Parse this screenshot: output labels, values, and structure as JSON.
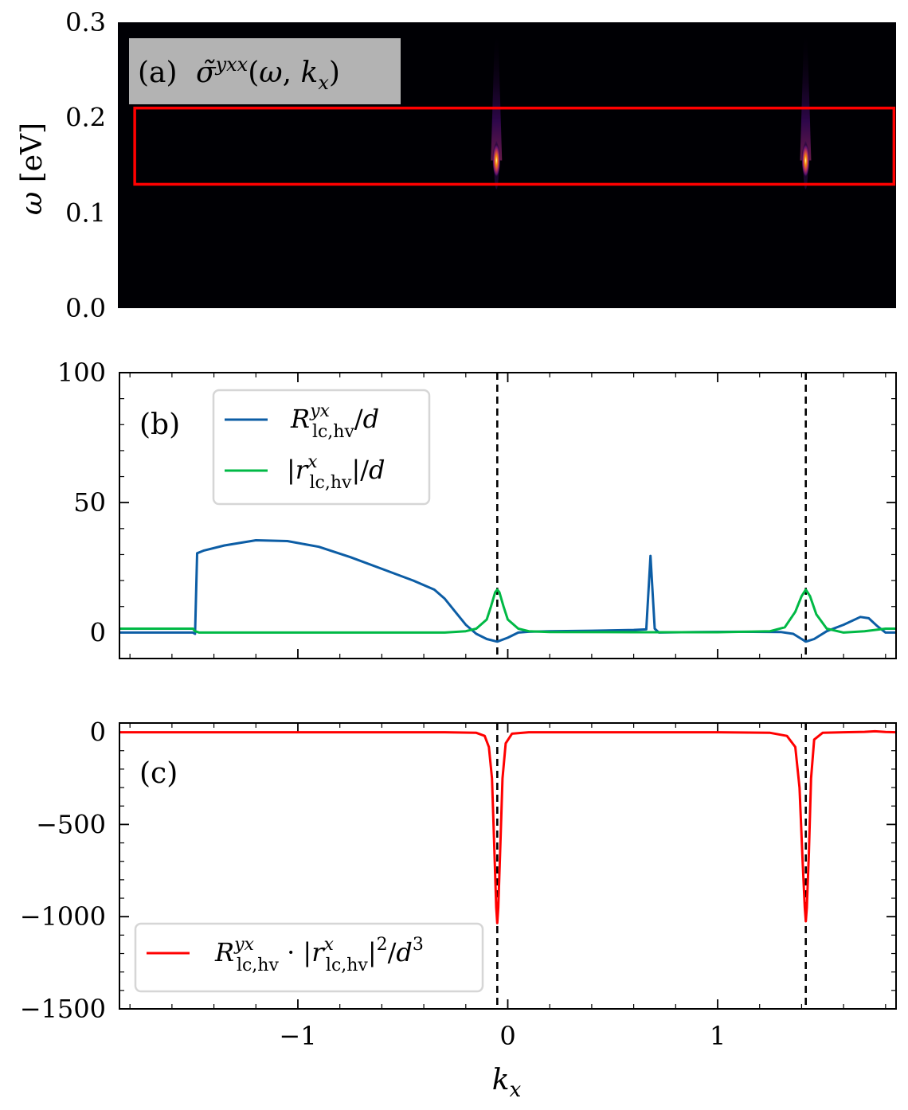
{
  "chart_data": [
    {
      "type": "heatmap",
      "panel_label": "(a)",
      "title": "σ̃^{yxx}(ω, k_x)",
      "title_text": "σ̃yxx(ω, kx)",
      "ylabel": "ω [eV]",
      "xlim": [
        -1.85,
        1.85
      ],
      "ylim": [
        0.0,
        0.3
      ],
      "yticks": [
        0.0,
        0.1,
        0.2,
        0.3
      ],
      "ytick_labels": [
        "0.0",
        "0.1",
        "0.2",
        "0.3"
      ],
      "background_color": "#000004",
      "hotspots": [
        {
          "kx": -0.05,
          "omega": 0.155
        },
        {
          "kx": 1.42,
          "omega": 0.155
        }
      ],
      "highlight_box": {
        "kx": [
          -1.77,
          1.84
        ],
        "omega": [
          0.13,
          0.21
        ],
        "color": "#ff0000"
      }
    },
    {
      "type": "line",
      "panel_label": "(b)",
      "xlim": [
        -1.85,
        1.85
      ],
      "ylim": [
        -10,
        100
      ],
      "yticks": [
        0,
        50,
        100
      ],
      "ytick_labels": [
        "0",
        "50",
        "100"
      ],
      "vlines": [
        -0.05,
        1.42
      ],
      "legend": "top-left",
      "series": [
        {
          "name": "R^{yx}_{lc,hv}/d",
          "name_parts": {
            "base": "R",
            "sup": "yx",
            "sub": "lc,hv",
            "tail": "/d"
          },
          "color": "#0c5da5",
          "x": [
            -1.85,
            -1.5,
            -1.49,
            -1.48,
            -1.45,
            -1.35,
            -1.2,
            -1.05,
            -0.9,
            -0.75,
            -0.6,
            -0.45,
            -0.35,
            -0.3,
            -0.25,
            -0.2,
            -0.15,
            -0.1,
            -0.05,
            0.0,
            0.05,
            0.1,
            0.2,
            0.4,
            0.6,
            0.66,
            0.68,
            0.7,
            0.72,
            0.9,
            1.1,
            1.3,
            1.36,
            1.4,
            1.42,
            1.46,
            1.52,
            1.6,
            1.68,
            1.72,
            1.76,
            1.8,
            1.85
          ],
          "y": [
            0.0,
            0.0,
            -0.5,
            30.5,
            31.5,
            33.5,
            35.5,
            35.2,
            33.0,
            29.0,
            24.5,
            20.0,
            16.5,
            13.0,
            8.0,
            3.0,
            -0.5,
            -2.5,
            -3.5,
            -2.0,
            0.0,
            0.3,
            0.5,
            0.7,
            1.0,
            1.2,
            29.5,
            1.5,
            0.0,
            0.2,
            0.3,
            0.2,
            -0.5,
            -2.5,
            -3.5,
            -2.5,
            0.5,
            3.0,
            6.0,
            5.5,
            2.5,
            0.0,
            0.0
          ]
        },
        {
          "name": "|r^{x}_{lc,hv}|/d",
          "name_parts": {
            "pre": "|",
            "base": "r",
            "sup": "x",
            "sub": "lc,hv",
            "tail": "|/d"
          },
          "color": "#00b945",
          "x": [
            -1.85,
            -1.5,
            -1.49,
            -1.47,
            -1.3,
            -1.0,
            -0.6,
            -0.3,
            -0.2,
            -0.15,
            -0.1,
            -0.08,
            -0.06,
            -0.05,
            -0.04,
            -0.02,
            0.0,
            0.05,
            0.1,
            0.2,
            0.6,
            1.0,
            1.25,
            1.32,
            1.37,
            1.4,
            1.42,
            1.44,
            1.47,
            1.52,
            1.6,
            1.7,
            1.75,
            1.8,
            1.85
          ],
          "y": [
            1.5,
            1.5,
            0.5,
            0.0,
            0.0,
            0.0,
            0.0,
            0.0,
            0.5,
            1.5,
            5.0,
            10.0,
            15.5,
            16.5,
            15.5,
            10.0,
            5.0,
            1.5,
            0.5,
            0.2,
            0.1,
            0.1,
            0.5,
            2.0,
            8.0,
            14.0,
            16.5,
            14.0,
            7.0,
            1.5,
            0.0,
            0.5,
            1.0,
            1.5,
            1.5
          ]
        }
      ]
    },
    {
      "type": "line",
      "panel_label": "(c)",
      "xlabel": "k_x",
      "xlim": [
        -1.85,
        1.85
      ],
      "ylim": [
        -1500,
        50
      ],
      "xticks": [
        -1,
        0,
        1
      ],
      "xtick_labels": [
        "−1",
        "0",
        "1"
      ],
      "yticks": [
        -1500,
        -1000,
        -500,
        0
      ],
      "ytick_labels": [
        "−1500",
        "−1000",
        "−500",
        "0"
      ],
      "vlines": [
        -0.05,
        1.42
      ],
      "legend": "bottom-left",
      "series": [
        {
          "name": "R^{yx}_{lc,hv} · |r^{x}_{lc,hv}|^2/d^3",
          "name_parts": {
            "base": "R",
            "sup": "yx",
            "sub": "lc,hv",
            "mid": " · |",
            "base2": "r",
            "sup2": "x",
            "sub2": "lc,hv",
            "tail": "|",
            "pow": "2",
            "tail2": "/d",
            "pow2": "3"
          },
          "color": "#ff0000",
          "x": [
            -1.85,
            -0.3,
            -0.15,
            -0.11,
            -0.09,
            -0.075,
            -0.065,
            -0.055,
            -0.05,
            -0.045,
            -0.035,
            -0.025,
            -0.01,
            0.02,
            0.1,
            0.5,
            1.0,
            1.25,
            1.33,
            1.37,
            1.39,
            1.405,
            1.415,
            1.42,
            1.425,
            1.435,
            1.445,
            1.46,
            1.5,
            1.6,
            1.7,
            1.75,
            1.8,
            1.85
          ],
          "y": [
            0,
            0,
            -3,
            -20,
            -80,
            -250,
            -600,
            -950,
            -1035,
            -950,
            -600,
            -250,
            -60,
            -8,
            0,
            0,
            0,
            -3,
            -20,
            -80,
            -300,
            -700,
            -950,
            -1025,
            -950,
            -650,
            -250,
            -40,
            -3,
            0,
            2,
            5,
            1,
            0
          ]
        }
      ]
    }
  ]
}
